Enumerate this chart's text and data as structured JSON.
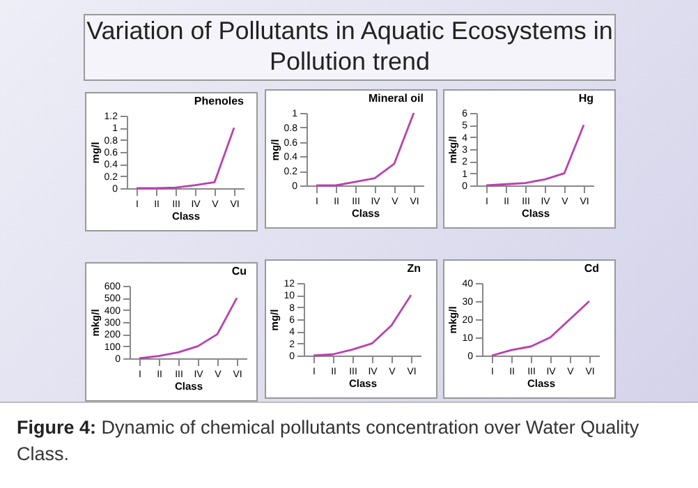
{
  "chart_data": [
    {
      "type": "line",
      "title": "Phenoles",
      "xlabel": "Class",
      "ylabel": "mg/l",
      "annotations": [
        "Variation of Pollutants in Aquatic Ecosystems in Pollution trend"
      ],
      "categories": [
        "I",
        "II",
        "III",
        "IV",
        "V",
        "VI"
      ],
      "ylim": [
        0,
        1.2
      ],
      "yticks": [
        0,
        0.2,
        0.4,
        0.6,
        0.8,
        1,
        1.2
      ],
      "series": [
        {
          "color": "#b940b0",
          "values": [
            0,
            0,
            0.01,
            0.05,
            0.1,
            1
          ]
        }
      ]
    },
    {
      "type": "line",
      "title": "Mineral oil",
      "xlabel": "Class",
      "ylabel": "mg/l",
      "categories": [
        "I",
        "II",
        "III",
        "IV",
        "V",
        "VI"
      ],
      "ylim": [
        0,
        1
      ],
      "yticks": [
        0,
        0.2,
        0.4,
        0.6,
        0.8,
        1
      ],
      "series": [
        {
          "color": "#b940b0",
          "values": [
            0,
            0,
            0.05,
            0.1,
            0.3,
            1
          ]
        }
      ]
    },
    {
      "type": "line",
      "title": "Hg",
      "xlabel": "Class",
      "ylabel": "mkg/l",
      "categories": [
        "I",
        "II",
        "III",
        "IV",
        "V",
        "VI"
      ],
      "ylim": [
        0,
        6
      ],
      "yticks": [
        0,
        1,
        2,
        3,
        4,
        5,
        6
      ],
      "series": [
        {
          "color": "#b940b0",
          "values": [
            0,
            0.1,
            0.2,
            0.5,
            1,
            5
          ]
        }
      ]
    },
    {
      "type": "line",
      "title": "Cu",
      "xlabel": "Class",
      "ylabel": "mkg/l",
      "categories": [
        "I",
        "II",
        "III",
        "IV",
        "V",
        "VI"
      ],
      "ylim": [
        0,
        600
      ],
      "yticks": [
        0,
        100,
        200,
        300,
        400,
        500,
        600
      ],
      "series": [
        {
          "color": "#b940b0",
          "values": [
            0,
            20,
            50,
            100,
            200,
            500
          ]
        }
      ]
    },
    {
      "type": "line",
      "title": "Zn",
      "xlabel": "Class",
      "ylabel": "mg/l",
      "categories": [
        "I",
        "II",
        "III",
        "IV",
        "V",
        "VI"
      ],
      "ylim": [
        0,
        12
      ],
      "yticks": [
        0,
        2,
        4,
        6,
        8,
        10,
        12
      ],
      "series": [
        {
          "color": "#b940b0",
          "values": [
            0,
            0.2,
            1,
            2,
            5,
            10
          ]
        }
      ]
    },
    {
      "type": "line",
      "title": "Cd",
      "xlabel": "Class",
      "ylabel": "mkg/l",
      "annotations": [
        "Figure 4: Dynamic of chemical pollutants concentration over Water Quality Class."
      ],
      "categories": [
        "I",
        "II",
        "III",
        "IV",
        "V",
        "VI"
      ],
      "ylim": [
        0,
        40
      ],
      "yticks": [
        0,
        10,
        20,
        30,
        40
      ],
      "series": [
        {
          "color": "#b940b0",
          "values": [
            0,
            3,
            5,
            10,
            20,
            30
          ]
        }
      ]
    }
  ]
}
